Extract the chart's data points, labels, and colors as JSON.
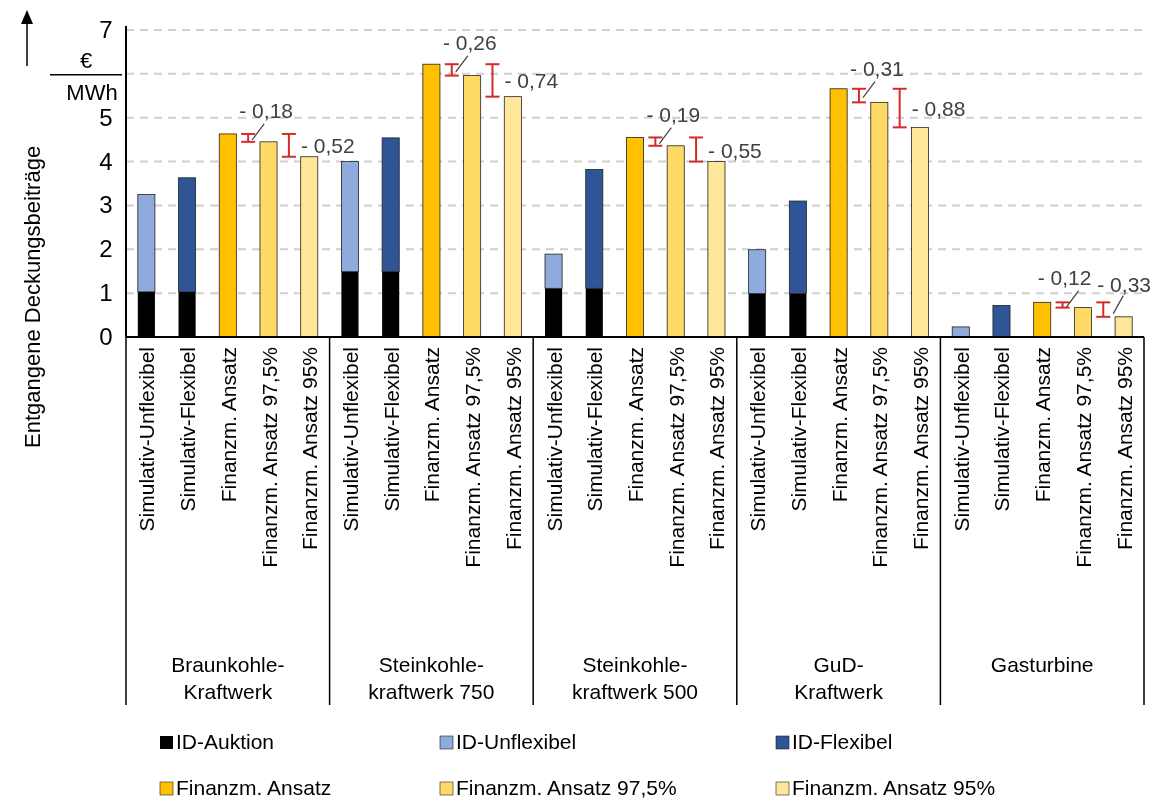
{
  "chart_data": {
    "type": "bar",
    "stacked": true,
    "ylabel": "Entgangene Deckungsbeiträge",
    "categories": [
      "Simulativ-Unflexibel",
      "Simulativ-Flexibel",
      "Finanzm. Ansatz",
      "Finanzm. Ansatz 97,5%",
      "Finanzm. Ansatz 95%",
      "Simulativ-Unflexibel",
      "Simulativ-Flexibel",
      "Finanzm. Ansatz",
      "Finanzm. Ansatz 97,5%",
      "Finanzm. Ansatz 95%",
      "Simulativ-Unflexibel",
      "Simulativ-Flexibel",
      "Finanzm. Ansatz",
      "Finanzm. Ansatz 97,5%",
      "Finanzm. Ansatz 95%",
      "Simulativ-Unflexibel",
      "Simulativ-Flexibel",
      "Finanzm. Ansatz",
      "Finanzm. Ansatz 97,5%",
      "Finanzm. Ansatz 95%",
      "Simulativ-Unflexibel",
      "Simulativ-Flexibel",
      "Finanzm. Ansatz",
      "Finanzm. Ansatz 97,5%",
      "Finanzm. Ansatz 95%"
    ],
    "series": [
      {
        "name": "ID-Auktion",
        "color": "#000000",
        "values": [
          1.03,
          1.03,
          null,
          null,
          null,
          1.49,
          1.49,
          null,
          null,
          null,
          1.11,
          1.11,
          null,
          null,
          null,
          0.99,
          0.99,
          null,
          null,
          null,
          null,
          null,
          null,
          null,
          null
        ]
      },
      {
        "name": "ID-Unflexibel",
        "color": "#8faadc",
        "values": [
          2.22,
          null,
          null,
          null,
          null,
          2.51,
          null,
          null,
          null,
          null,
          0.78,
          null,
          null,
          null,
          null,
          1.0,
          null,
          null,
          null,
          null,
          0.23,
          null,
          null,
          null,
          null
        ]
      },
      {
        "name": "ID-Flexibel",
        "color": "#2f5597",
        "values": [
          null,
          2.6,
          null,
          null,
          null,
          null,
          3.05,
          null,
          null,
          null,
          null,
          2.71,
          null,
          null,
          null,
          null,
          2.11,
          null,
          null,
          null,
          null,
          0.72,
          null,
          null,
          null
        ]
      },
      {
        "name": "Finanzm. Ansatz",
        "color": "#ffc000",
        "values": [
          null,
          null,
          4.63,
          null,
          null,
          null,
          null,
          6.22,
          null,
          null,
          null,
          null,
          4.55,
          null,
          null,
          null,
          null,
          5.66,
          null,
          null,
          null,
          null,
          0.79,
          null,
          null
        ]
      },
      {
        "name": "Finanzm. Ansatz 97,5%",
        "color": "#ffd966",
        "values": [
          null,
          null,
          null,
          4.45,
          null,
          null,
          null,
          null,
          5.96,
          null,
          null,
          null,
          null,
          4.36,
          null,
          null,
          null,
          null,
          5.35,
          null,
          null,
          null,
          null,
          0.67,
          null
        ]
      },
      {
        "name": "Finanzm. Ansatz 95%",
        "color": "#ffe699",
        "values": [
          null,
          null,
          null,
          null,
          4.11,
          null,
          null,
          null,
          null,
          5.48,
          null,
          null,
          null,
          null,
          4.0,
          null,
          null,
          null,
          null,
          4.78,
          null,
          null,
          null,
          null,
          0.46
        ]
      }
    ],
    "ylim": [
      0,
      7
    ],
    "yticks": [
      0,
      1,
      2,
      3,
      4,
      5,
      {
        "value": 6,
        "label": null
      },
      7
    ],
    "grid": "y",
    "legend": "bottom",
    "annotations": [
      "Braunkohle-\nKraftwerk",
      "Steinkohle-\nkraftwerk 750",
      "Steinkohle-\nkraftwerk 500",
      "GuD-\nKraftwerk",
      "Gasturbine",
      "- 0,18",
      "- 0,52",
      "- 0,26",
      "- 0,74",
      "- 0,19",
      "- 0,55",
      "- 0,31",
      "- 0,88",
      "- 0,12",
      "- 0,33",
      "€",
      "MWh"
    ]
  }
}
